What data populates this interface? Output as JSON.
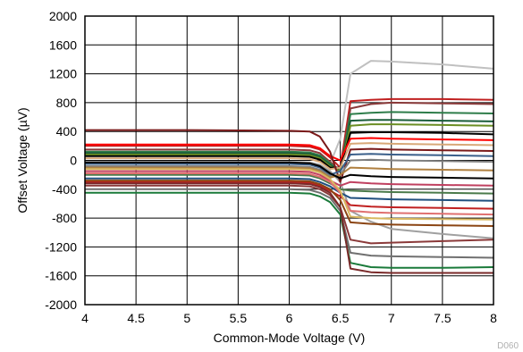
{
  "chart_data": {
    "type": "line",
    "title": "",
    "xlabel": "Common-Mode Voltage (V)",
    "ylabel": "Offset Voltage (µV)",
    "xlim": [
      4,
      8
    ],
    "ylim": [
      -2000,
      2000
    ],
    "x_ticks": [
      4,
      4.5,
      5,
      5.5,
      6,
      6.5,
      7,
      7.5,
      8
    ],
    "x_tick_labels": [
      "4",
      "4.5",
      "5",
      "5.5",
      "6",
      "6.5",
      "7",
      "7.5",
      "8"
    ],
    "y_ticks": [
      -2000,
      -1600,
      -1200,
      -800,
      -400,
      0,
      400,
      800,
      1200,
      1600,
      2000
    ],
    "y_tick_labels": [
      "-2000",
      "-1600",
      "-1200",
      "-800",
      "-400",
      "0",
      "400",
      "800",
      "1200",
      "1600",
      "2000"
    ],
    "grid": true,
    "legend": "none",
    "figure_id": "D060",
    "x": [
      4,
      5,
      6,
      6.2,
      6.3,
      6.4,
      6.5,
      6.6,
      6.8,
      7,
      7.5,
      8
    ],
    "series": [
      {
        "color": "#c0c0c0",
        "values": [
          80,
          80,
          80,
          70,
          40,
          -50,
          300,
          1200,
          1380,
          1370,
          1330,
          1270
        ]
      },
      {
        "color": "#a0a0a0",
        "values": [
          -20,
          -20,
          -20,
          -30,
          -60,
          -150,
          -300,
          -700,
          -850,
          -950,
          -1020,
          -1080
        ]
      },
      {
        "color": "#c02020",
        "values": [
          200,
          200,
          200,
          190,
          150,
          40,
          -100,
          820,
          840,
          850,
          850,
          840
        ]
      },
      {
        "color": "#8b3a3a",
        "values": [
          150,
          150,
          150,
          140,
          100,
          -20,
          -150,
          720,
          780,
          800,
          790,
          780
        ]
      },
      {
        "color": "#2e7d4a",
        "values": [
          120,
          120,
          120,
          110,
          70,
          -40,
          -150,
          640,
          660,
          670,
          660,
          650
        ]
      },
      {
        "color": "#1a5c3a",
        "values": [
          100,
          100,
          100,
          90,
          50,
          -60,
          -150,
          550,
          560,
          560,
          550,
          540
        ]
      },
      {
        "color": "#6b8e23",
        "values": [
          80,
          80,
          80,
          70,
          30,
          -80,
          -150,
          480,
          500,
          500,
          490,
          480
        ]
      },
      {
        "color": "#000000",
        "values": [
          60,
          60,
          60,
          50,
          10,
          -100,
          -100,
          380,
          390,
          390,
          380,
          360
        ]
      },
      {
        "color": "#ff0000",
        "values": [
          220,
          220,
          220,
          210,
          170,
          60,
          0,
          300,
          310,
          300,
          290,
          280
        ]
      },
      {
        "color": "#d8a878",
        "values": [
          30,
          30,
          30,
          20,
          -20,
          -120,
          -100,
          230,
          240,
          230,
          220,
          210
        ]
      },
      {
        "color": "#7a1a1a",
        "values": [
          420,
          420,
          410,
          400,
          330,
          120,
          -300,
          150,
          160,
          150,
          140,
          130
        ]
      },
      {
        "color": "#3a5f8a",
        "values": [
          -50,
          -50,
          -50,
          -60,
          -100,
          -200,
          -150,
          80,
          90,
          80,
          70,
          60
        ]
      },
      {
        "color": "#808080",
        "values": [
          -80,
          -80,
          -80,
          -90,
          -130,
          -220,
          -200,
          0,
          10,
          0,
          -10,
          -20
        ]
      },
      {
        "color": "#b08040",
        "values": [
          -100,
          -100,
          -100,
          -110,
          -150,
          -240,
          -200,
          -100,
          -110,
          -120,
          -130,
          -140
        ]
      },
      {
        "color": "#000000",
        "values": [
          -30,
          -30,
          -30,
          -40,
          -80,
          -180,
          -250,
          -200,
          -220,
          -230,
          -240,
          -250
        ]
      },
      {
        "color": "#c04060",
        "values": [
          -150,
          -150,
          -150,
          -160,
          -200,
          -280,
          -350,
          -300,
          -320,
          -330,
          -340,
          -350
        ]
      },
      {
        "color": "#4a7a4a",
        "values": [
          -200,
          -200,
          -200,
          -210,
          -250,
          -320,
          -400,
          -420,
          -430,
          -440,
          -450,
          -460
        ]
      },
      {
        "color": "#1f4f7f",
        "values": [
          -250,
          -250,
          -250,
          -260,
          -300,
          -360,
          -450,
          -520,
          -530,
          -540,
          -550,
          -560
        ]
      },
      {
        "color": "#c02020",
        "values": [
          -300,
          -300,
          -300,
          -310,
          -350,
          -420,
          -500,
          -620,
          -640,
          -650,
          -660,
          -670
        ]
      },
      {
        "color": "#e07070",
        "values": [
          -180,
          -180,
          -180,
          -190,
          -230,
          -300,
          -450,
          -700,
          -720,
          -730,
          -740,
          -750
        ]
      },
      {
        "color": "#d8b860",
        "values": [
          -120,
          -120,
          -120,
          -130,
          -170,
          -260,
          -420,
          -780,
          -800,
          -810,
          -815,
          -820
        ]
      },
      {
        "color": "#8b4513",
        "values": [
          -280,
          -280,
          -280,
          -290,
          -330,
          -400,
          -550,
          -860,
          -880,
          -890,
          -900,
          -910
        ]
      },
      {
        "color": "#8b3a3a",
        "values": [
          -350,
          -350,
          -350,
          -360,
          -400,
          -480,
          -650,
          -1100,
          -1150,
          -1140,
          -1120,
          -1100
        ]
      },
      {
        "color": "#707070",
        "values": [
          -400,
          -400,
          -400,
          -410,
          -450,
          -520,
          -700,
          -1280,
          -1320,
          -1330,
          -1340,
          -1350
        ]
      },
      {
        "color": "#1a7a3a",
        "values": [
          -450,
          -450,
          -450,
          -460,
          -500,
          -580,
          -750,
          -1420,
          -1480,
          -1490,
          -1490,
          -1480
        ]
      },
      {
        "color": "#7a2a2a",
        "values": [
          -320,
          -320,
          -320,
          -330,
          -370,
          -450,
          -650,
          -1500,
          -1550,
          -1560,
          -1560,
          -1560
        ]
      }
    ]
  }
}
